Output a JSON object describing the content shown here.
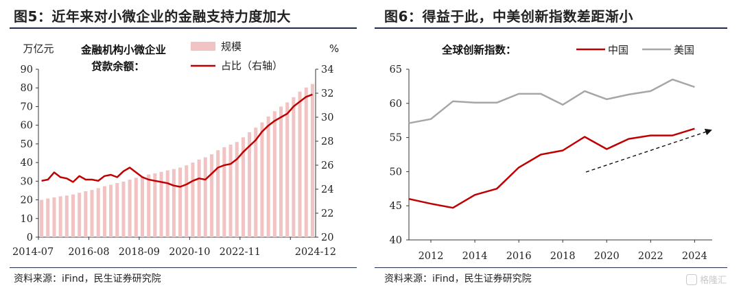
{
  "left": {
    "title": "图5：近年来对小微企业的金融支持力度加大",
    "source": "资料来源：iFind，民生证券研究院"
  },
  "right": {
    "title": "图6：得益于此，中美创新指数差距渐小",
    "source": "资料来源：iFind，民生证券研究院"
  },
  "watermark": "格隆汇",
  "colors": {
    "bar": "#f2c3c3",
    "red_line": "#c00000",
    "gray_line": "#a6a6a6",
    "rule": "#1b2a4a"
  },
  "chart_data": [
    {
      "type": "bar",
      "title_lines": [
        "金融机构小微企业",
        "贷款余额："
      ],
      "left_unit": "万亿元",
      "right_unit": "%",
      "ylim": [
        0,
        90
      ],
      "ylim_right": [
        20,
        34
      ],
      "y_ticks": [
        0,
        10,
        20,
        30,
        40,
        50,
        60,
        70,
        80,
        90
      ],
      "y_ticks_right": [
        20,
        22,
        24,
        26,
        28,
        30,
        32,
        34
      ],
      "x_tick_labels": [
        "2014-07",
        "2016-08",
        "2018-09",
        "2020-10",
        "2022-11",
        "2024-12"
      ],
      "x_tick_index": [
        0,
        8,
        16,
        24,
        32,
        40
      ],
      "series": [
        {
          "name": "规模",
          "type": "bar",
          "values": [
            20.0,
            20.7,
            21.3,
            21.9,
            22.3,
            22.9,
            23.8,
            24.6,
            25.3,
            26.3,
            27.3,
            28.1,
            29.0,
            29.8,
            30.8,
            31.8,
            32.7,
            33.6,
            34.2,
            35.0,
            35.8,
            36.5,
            37.3,
            38.5,
            40.0,
            41.6,
            42.8,
            44.4,
            46.6,
            48.2,
            49.6,
            51.0,
            53.5,
            56.2,
            58.7,
            61.5,
            64.7,
            67.5,
            70.0,
            72.2,
            75.0,
            78.0,
            80.2,
            82.1
          ]
        },
        {
          "name": "占比（右轴）",
          "type": "line",
          "axis": "right",
          "values": [
            24.7,
            24.8,
            25.4,
            25.0,
            24.9,
            24.6,
            25.1,
            24.8,
            24.8,
            24.7,
            25.1,
            25.2,
            25.0,
            25.5,
            25.8,
            25.4,
            25.0,
            24.8,
            24.7,
            24.6,
            24.5,
            24.3,
            24.2,
            24.4,
            24.7,
            24.9,
            24.8,
            25.3,
            25.8,
            26.0,
            26.1,
            26.5,
            27.1,
            27.6,
            28.1,
            28.8,
            29.3,
            29.7,
            30.0,
            30.3,
            30.9,
            31.3,
            31.7,
            31.9
          ]
        }
      ],
      "legend": [
        "规模",
        "占比（右轴）"
      ]
    },
    {
      "type": "line",
      "title": "全球创新指数：",
      "ylim": [
        40,
        65
      ],
      "y_ticks": [
        40,
        45,
        50,
        55,
        60,
        65
      ],
      "x_tick_labels": [
        "2012",
        "2014",
        "2016",
        "2018",
        "2020",
        "2022",
        "2024"
      ],
      "x": [
        2011.0,
        2012.0,
        2013.0,
        2014.0,
        2015.0,
        2016.0,
        2017.0,
        2018.0,
        2019.0,
        2020.0,
        2021.0,
        2022.0,
        2023.0,
        2024.0
      ],
      "series": [
        {
          "name": "中国",
          "values": [
            46.0,
            45.3,
            44.7,
            46.6,
            47.5,
            50.6,
            52.5,
            53.1,
            55.1,
            53.3,
            54.8,
            55.3,
            55.3,
            56.3
          ]
        },
        {
          "name": "美国",
          "values": [
            57.1,
            57.7,
            60.3,
            60.1,
            60.1,
            61.4,
            61.4,
            59.8,
            61.8,
            60.6,
            61.3,
            61.8,
            63.5,
            62.4
          ]
        }
      ],
      "legend": [
        "中国",
        "美国"
      ],
      "trend_arrow": true
    }
  ]
}
